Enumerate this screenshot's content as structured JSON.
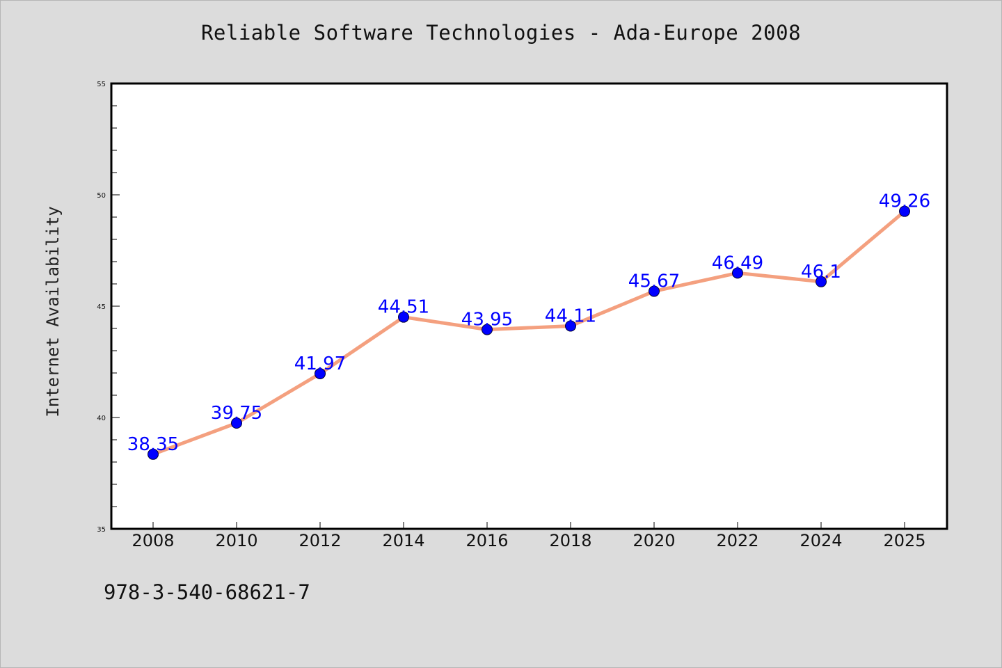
{
  "chart_data": {
    "type": "line",
    "title": "Reliable Software Technologies - Ada-Europe 2008",
    "ylabel": "Internet Availability",
    "xlabel": "",
    "categories": [
      "2008",
      "2010",
      "2012",
      "2014",
      "2016",
      "2018",
      "2020",
      "2022",
      "2024",
      "2025"
    ],
    "values": [
      38.35,
      39.75,
      41.97,
      44.51,
      43.95,
      44.11,
      45.67,
      46.49,
      46.1,
      49.26
    ],
    "data_labels": [
      "38.35",
      "39.75",
      "41.97",
      "44.51",
      "43.95",
      "44.11",
      "45.67",
      "46.49",
      "46.1",
      "49.26"
    ],
    "ylim": [
      35,
      55
    ],
    "yticks": [
      "35",
      "40",
      "45",
      "50",
      "55"
    ],
    "grid": false,
    "colors": {
      "line": "#f4a07f",
      "marker": "#0000ff",
      "label": "#0000ff",
      "plot_background": "#ffffff",
      "figure_background": "#dcdcdc"
    }
  },
  "footer": {
    "isbn": "978-3-540-68621-7"
  }
}
